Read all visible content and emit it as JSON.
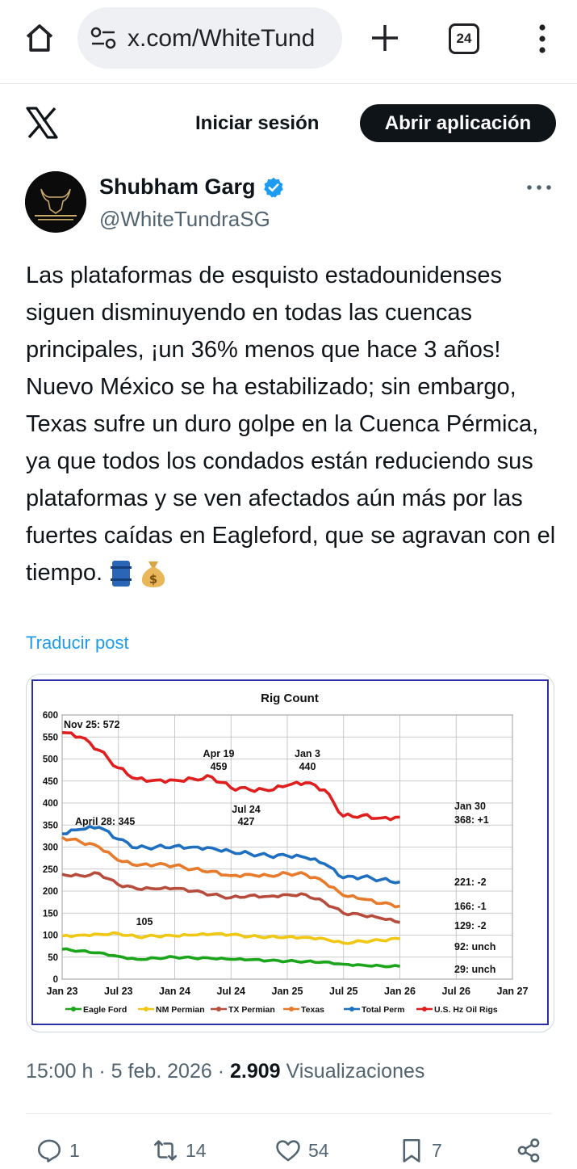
{
  "browser": {
    "url": "x.com/WhiteTund",
    "tab_count": "24"
  },
  "header": {
    "login_label": "Iniciar sesión",
    "open_app_label": "Abrir aplicación"
  },
  "author": {
    "name": "Shubham Garg",
    "handle": "@WhiteTundraSG"
  },
  "tweet": {
    "text": "Las plataformas de esquisto estadounidenses siguen disminuyendo en todas las cuencas principales, ¡un 36% menos que hace 3 años! Nuevo México se ha estabilizado; sin embargo, Texas sufre un duro golpe en la Cuenca Pérmica, ya que todos los condados están reduciendo sus plataformas y se ven afectados aún más por las fuertes caídas en Eagleford, que se agravan con el tiempo.",
    "translate_label": "Traducir post",
    "time": "15:00 h",
    "date": "5 feb. 2026",
    "views_count": "2.909",
    "views_label": "Visualizaciones"
  },
  "actions": {
    "replies": "1",
    "reposts": "14",
    "likes": "54",
    "bookmarks": "7"
  },
  "colors": {
    "x_blue": "#1d9bf0",
    "eagle_ford": "#1aa51a",
    "nm_permian": "#f0c814",
    "tx_permian": "#b84c3c",
    "texas": "#e87a2c",
    "total_perm": "#1e6fc0",
    "us_hz_oil": "#e01e1e"
  },
  "chart_data": {
    "type": "line",
    "title": "Rig Count",
    "x_tick_labels": [
      "Jan 23",
      "Jul 23",
      "Jan 24",
      "Jul 24",
      "Jan 25",
      "Jul 25",
      "Jan 26",
      "Jul 26",
      "Jan 27"
    ],
    "y_tick_labels": [
      "0",
      "50",
      "100",
      "150",
      "200",
      "250",
      "300",
      "350",
      "400",
      "450",
      "500",
      "550",
      "600"
    ],
    "ylim": [
      0,
      600
    ],
    "grid": true,
    "legend_position": "bottom",
    "x": [
      "2023-01",
      "2023-03",
      "2023-05",
      "2023-07",
      "2023-09",
      "2023-11",
      "2024-01",
      "2024-03",
      "2024-05",
      "2024-07",
      "2024-09",
      "2024-11",
      "2025-01",
      "2025-03",
      "2025-05",
      "2025-07",
      "2025-09",
      "2025-11",
      "2026-01"
    ],
    "series": [
      {
        "name": "Eagle Ford",
        "color": "#1aa51a",
        "values": [
          68,
          64,
          60,
          52,
          45,
          48,
          50,
          48,
          47,
          45,
          44,
          42,
          41,
          40,
          39,
          34,
          32,
          30,
          29
        ]
      },
      {
        "name": "NM Permian",
        "color": "#f0c814",
        "values": [
          98,
          100,
          102,
          104,
          96,
          98,
          98,
          100,
          102,
          101,
          97,
          96,
          96,
          95,
          92,
          82,
          86,
          88,
          92
        ]
      },
      {
        "name": "TX Permian",
        "color": "#b84c3c",
        "values": [
          238,
          235,
          240,
          215,
          205,
          205,
          206,
          200,
          192,
          185,
          190,
          188,
          192,
          192,
          175,
          150,
          145,
          138,
          129
        ]
      },
      {
        "name": "Texas",
        "color": "#e87a2c",
        "values": [
          322,
          312,
          300,
          270,
          258,
          260,
          258,
          250,
          245,
          235,
          238,
          235,
          240,
          238,
          220,
          190,
          182,
          172,
          166
        ]
      },
      {
        "name": "Total Perm",
        "color": "#1e6fc0",
        "values": [
          330,
          340,
          345,
          318,
          298,
          300,
          302,
          300,
          298,
          290,
          285,
          280,
          280,
          276,
          262,
          230,
          232,
          226,
          221
        ]
      },
      {
        "name": "U.S. Hz Oil Rigs",
        "color": "#e01e1e",
        "values": [
          560,
          550,
          520,
          480,
          455,
          452,
          452,
          455,
          459,
          435,
          430,
          428,
          440,
          446,
          430,
          370,
          372,
          366,
          368
        ]
      }
    ],
    "annotations": [
      {
        "text": "Nov 25: 572",
        "x": "2022-11",
        "y": 572
      },
      {
        "text": "April 28: 345",
        "x": "2023-04",
        "y": 345
      },
      {
        "text": "Apr 19",
        "x": "2024-04",
        "y": 459
      },
      {
        "text": "459",
        "x": "2024-04",
        "y": 459
      },
      {
        "text": "Jul 24",
        "x": "2024-07",
        "y": 427
      },
      {
        "text": "427",
        "x": "2024-07",
        "y": 427
      },
      {
        "text": "Jan 3",
        "x": "2025-01",
        "y": 440
      },
      {
        "text": "440",
        "x": "2025-01",
        "y": 440
      },
      {
        "text": "105",
        "x": "2023-07",
        "y": 105
      },
      {
        "text": "Jan 30",
        "x": "2026-01",
        "y": 368
      },
      {
        "text": "368: +1",
        "x": "2026-01",
        "y": 368
      },
      {
        "text": "221: -2",
        "x": "2026-01",
        "y": 221
      },
      {
        "text": "166: -1",
        "x": "2026-01",
        "y": 166
      },
      {
        "text": "129: -2",
        "x": "2026-01",
        "y": 129
      },
      {
        "text": "92: unch",
        "x": "2026-01",
        "y": 92
      },
      {
        "text": "29: unch",
        "x": "2026-01",
        "y": 29
      }
    ]
  }
}
